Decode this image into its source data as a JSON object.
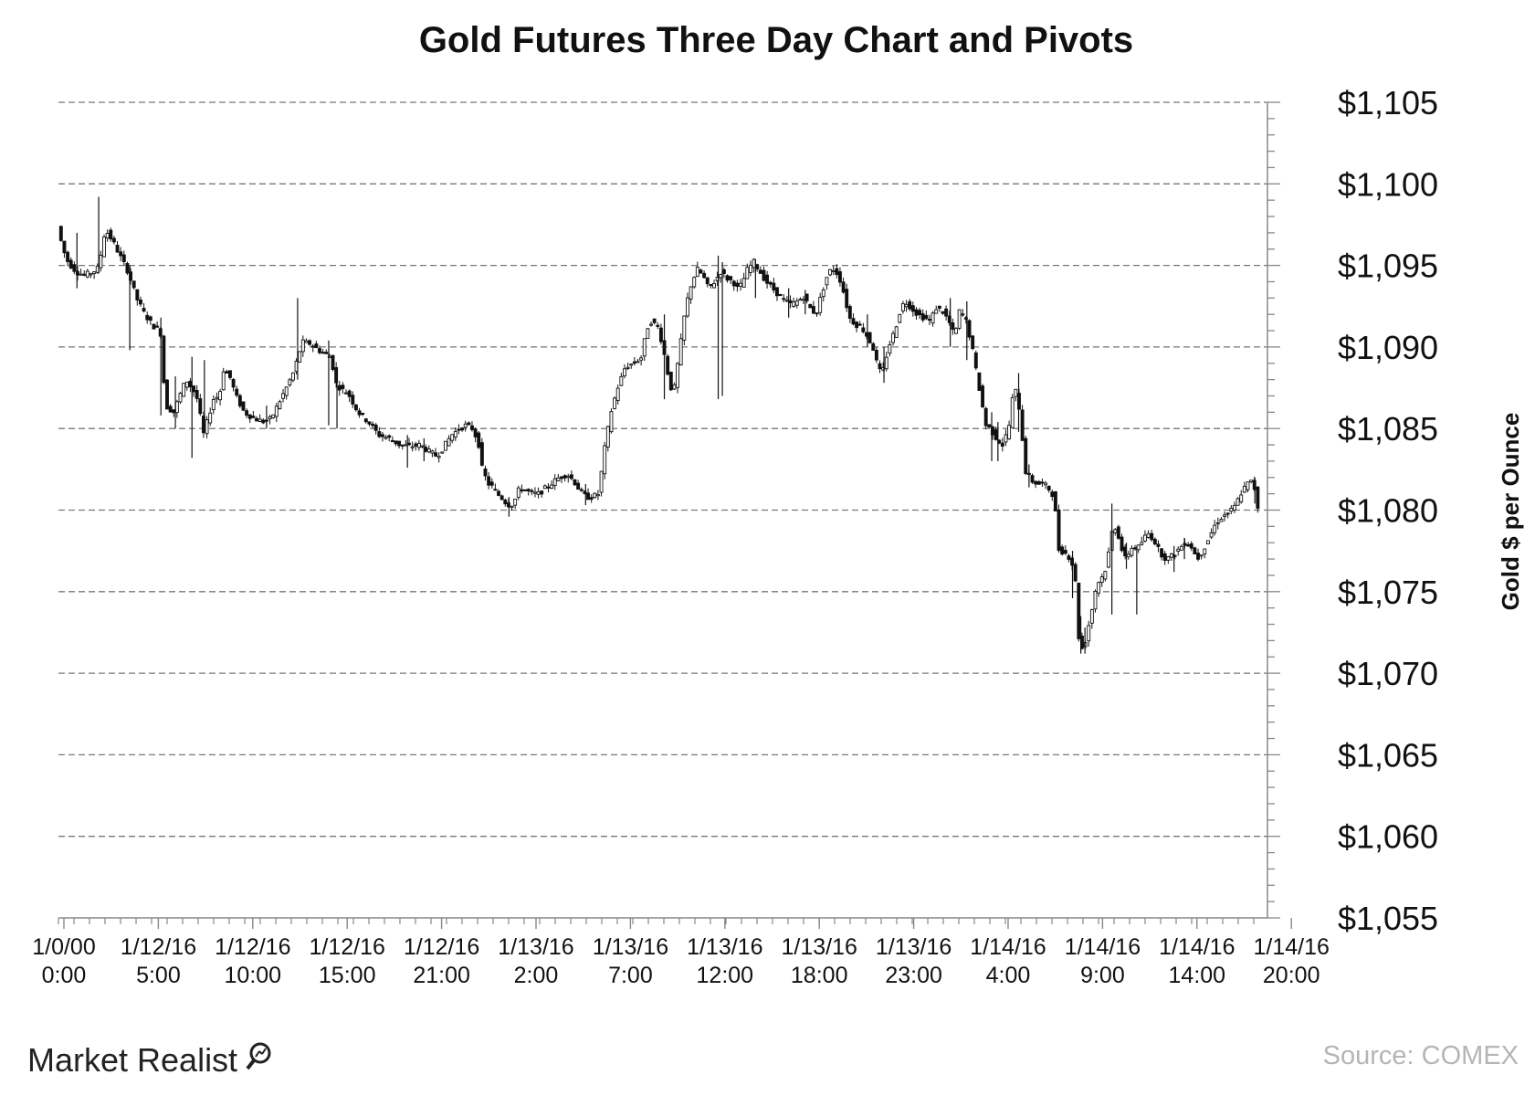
{
  "chart_data": {
    "type": "candlestick",
    "title": "Gold Futures Three Day Chart and Pivots",
    "ylabel": "Gold $ per  Ounce",
    "ylim": [
      1055,
      1105
    ],
    "yticks": [
      1105,
      1100,
      1095,
      1090,
      1085,
      1080,
      1075,
      1070,
      1065,
      1060,
      1055
    ],
    "ytick_labels": [
      "$1,105",
      "$1,100",
      "$1,095",
      "$1,090",
      "$1,085",
      "$1,080",
      "$1,075",
      "$1,070",
      "$1,065",
      "$1,060",
      "$1,055"
    ],
    "grid": "horizontal dashed",
    "xtick_labels": [
      [
        "1/0/00",
        "0:00"
      ],
      [
        "1/12/16",
        "5:00"
      ],
      [
        "1/12/16",
        "10:00"
      ],
      [
        "1/12/16",
        "15:00"
      ],
      [
        "1/12/16",
        "21:00"
      ],
      [
        "1/13/16",
        "2:00"
      ],
      [
        "1/13/16",
        "7:00"
      ],
      [
        "1/13/16",
        "12:00"
      ],
      [
        "1/13/16",
        "18:00"
      ],
      [
        "1/13/16",
        "23:00"
      ],
      [
        "1/14/16",
        "4:00"
      ],
      [
        "1/14/16",
        "9:00"
      ],
      [
        "1/14/16",
        "14:00"
      ],
      [
        "1/14/16",
        "20:00"
      ]
    ],
    "price_path": [
      [
        0,
        1097.4
      ],
      [
        5,
        1096.0
      ],
      [
        10,
        1095.2
      ],
      [
        18,
        1094.6
      ],
      [
        26,
        1094.4
      ],
      [
        34,
        1094.6
      ],
      [
        40,
        1094.9
      ],
      [
        44,
        1096.8
      ],
      [
        48,
        1097.0
      ],
      [
        53,
        1096.5
      ],
      [
        60,
        1095.6
      ],
      [
        68,
        1094.6
      ],
      [
        76,
        1093.0
      ],
      [
        84,
        1092.0
      ],
      [
        92,
        1091.3
      ],
      [
        99,
        1091.0
      ],
      [
        104,
        1086.4
      ],
      [
        112,
        1086.0
      ],
      [
        120,
        1087.4
      ],
      [
        124,
        1088.0
      ],
      [
        128,
        1087.6
      ],
      [
        132,
        1087.2
      ],
      [
        136,
        1086.6
      ],
      [
        140,
        1084.5
      ],
      [
        146,
        1085.8
      ],
      [
        150,
        1086.8
      ],
      [
        156,
        1087.0
      ],
      [
        160,
        1088.6
      ],
      [
        166,
        1088.2
      ],
      [
        172,
        1087.0
      ],
      [
        180,
        1086.0
      ],
      [
        190,
        1085.6
      ],
      [
        200,
        1085.4
      ],
      [
        206,
        1085.6
      ],
      [
        212,
        1086.4
      ],
      [
        220,
        1087.4
      ],
      [
        228,
        1088.5
      ],
      [
        236,
        1090.3
      ],
      [
        244,
        1090.2
      ],
      [
        252,
        1089.8
      ],
      [
        260,
        1089.5
      ],
      [
        264,
        1089.4
      ],
      [
        268,
        1087.8
      ],
      [
        274,
        1087.4
      ],
      [
        280,
        1087.2
      ],
      [
        290,
        1086.0
      ],
      [
        300,
        1085.4
      ],
      [
        310,
        1084.6
      ],
      [
        320,
        1084.4
      ],
      [
        330,
        1084.0
      ],
      [
        340,
        1083.9
      ],
      [
        350,
        1084.0
      ],
      [
        358,
        1083.6
      ],
      [
        366,
        1083.3
      ],
      [
        372,
        1083.8
      ],
      [
        380,
        1084.6
      ],
      [
        388,
        1085.0
      ],
      [
        394,
        1085.2
      ],
      [
        400,
        1085.0
      ],
      [
        406,
        1084.2
      ],
      [
        410,
        1082.4
      ],
      [
        416,
        1081.6
      ],
      [
        420,
        1081.4
      ],
      [
        424,
        1081.0
      ],
      [
        428,
        1080.8
      ],
      [
        432,
        1080.5
      ],
      [
        436,
        1080.3
      ],
      [
        440,
        1080.4
      ],
      [
        446,
        1081.4
      ],
      [
        452,
        1081.2
      ],
      [
        458,
        1081.0
      ],
      [
        464,
        1081.0
      ],
      [
        470,
        1081.3
      ],
      [
        476,
        1081.6
      ],
      [
        484,
        1082.0
      ],
      [
        492,
        1082.2
      ],
      [
        498,
        1081.8
      ],
      [
        504,
        1081.2
      ],
      [
        510,
        1080.8
      ],
      [
        516,
        1080.8
      ],
      [
        522,
        1081.0
      ],
      [
        528,
        1083.8
      ],
      [
        534,
        1086.0
      ],
      [
        540,
        1087.4
      ],
      [
        548,
        1088.8
      ],
      [
        556,
        1089.0
      ],
      [
        564,
        1089.4
      ],
      [
        568,
        1091.0
      ],
      [
        572,
        1091.6
      ],
      [
        580,
        1091.2
      ],
      [
        586,
        1089.4
      ],
      [
        590,
        1088.0
      ],
      [
        594,
        1087.0
      ],
      [
        600,
        1089.6
      ],
      [
        606,
        1092.4
      ],
      [
        612,
        1094.0
      ],
      [
        618,
        1094.8
      ],
      [
        624,
        1094.2
      ],
      [
        628,
        1093.6
      ],
      [
        634,
        1094.0
      ],
      [
        640,
        1094.6
      ],
      [
        646,
        1094.2
      ],
      [
        652,
        1094.0
      ],
      [
        656,
        1093.6
      ],
      [
        660,
        1093.8
      ],
      [
        666,
        1094.8
      ],
      [
        672,
        1095.2
      ],
      [
        678,
        1094.6
      ],
      [
        684,
        1094.0
      ],
      [
        690,
        1093.6
      ],
      [
        696,
        1093.2
      ],
      [
        702,
        1092.8
      ],
      [
        708,
        1092.6
      ],
      [
        714,
        1092.8
      ],
      [
        720,
        1093.1
      ],
      [
        726,
        1092.4
      ],
      [
        732,
        1092.0
      ],
      [
        738,
        1093.4
      ],
      [
        744,
        1094.6
      ],
      [
        750,
        1094.8
      ],
      [
        756,
        1094.0
      ],
      [
        760,
        1093.0
      ],
      [
        764,
        1091.8
      ],
      [
        770,
        1091.4
      ],
      [
        776,
        1091.2
      ],
      [
        782,
        1090.6
      ],
      [
        788,
        1089.8
      ],
      [
        792,
        1088.6
      ],
      [
        796,
        1088.4
      ],
      [
        802,
        1090.0
      ],
      [
        808,
        1091.0
      ],
      [
        814,
        1092.4
      ],
      [
        818,
        1092.8
      ],
      [
        824,
        1092.4
      ],
      [
        830,
        1092.0
      ],
      [
        836,
        1091.8
      ],
      [
        842,
        1091.6
      ],
      [
        848,
        1092.4
      ],
      [
        854,
        1092.2
      ],
      [
        860,
        1091.6
      ],
      [
        866,
        1090.6
      ],
      [
        870,
        1092.2
      ],
      [
        876,
        1091.8
      ],
      [
        882,
        1090.2
      ],
      [
        888,
        1088.0
      ],
      [
        892,
        1086.6
      ],
      [
        896,
        1085.2
      ],
      [
        900,
        1085.0
      ],
      [
        906,
        1084.4
      ],
      [
        912,
        1084.0
      ],
      [
        918,
        1085.0
      ],
      [
        922,
        1087.0
      ],
      [
        926,
        1087.4
      ],
      [
        930,
        1085.2
      ],
      [
        934,
        1082.4
      ],
      [
        940,
        1081.8
      ],
      [
        946,
        1081.6
      ],
      [
        952,
        1081.6
      ],
      [
        958,
        1081.2
      ],
      [
        962,
        1080.8
      ],
      [
        966,
        1077.6
      ],
      [
        972,
        1077.4
      ],
      [
        978,
        1077.0
      ],
      [
        982,
        1076.0
      ],
      [
        986,
        1071.8
      ],
      [
        990,
        1071.4
      ],
      [
        994,
        1072.6
      ],
      [
        998,
        1073.8
      ],
      [
        1002,
        1075.2
      ],
      [
        1006,
        1075.8
      ],
      [
        1010,
        1076.0
      ],
      [
        1014,
        1077.2
      ],
      [
        1018,
        1078.8
      ],
      [
        1022,
        1079.0
      ],
      [
        1026,
        1077.8
      ],
      [
        1030,
        1077.0
      ],
      [
        1034,
        1077.4
      ],
      [
        1038,
        1077.8
      ],
      [
        1042,
        1077.6
      ],
      [
        1046,
        1078.0
      ],
      [
        1052,
        1078.6
      ],
      [
        1058,
        1078.2
      ],
      [
        1064,
        1077.4
      ],
      [
        1070,
        1077.0
      ],
      [
        1076,
        1077.2
      ],
      [
        1082,
        1077.6
      ],
      [
        1088,
        1078.0
      ],
      [
        1094,
        1077.8
      ],
      [
        1100,
        1077.0
      ],
      [
        1106,
        1077.6
      ],
      [
        1112,
        1078.4
      ],
      [
        1118,
        1079.2
      ],
      [
        1124,
        1079.6
      ],
      [
        1130,
        1079.8
      ],
      [
        1136,
        1080.2
      ],
      [
        1142,
        1081.0
      ],
      [
        1148,
        1081.6
      ],
      [
        1154,
        1081.8
      ],
      [
        1158,
        1080.2
      ]
    ],
    "wicks": [
      [
        17,
        1093.6,
        1097.0
      ],
      [
        38,
        1094.5,
        1099.2
      ],
      [
        68,
        1089.8,
        1095.0
      ],
      [
        98,
        1085.8,
        1091.8
      ],
      [
        112,
        1085.0,
        1088.2
      ],
      [
        128,
        1083.2,
        1089.4
      ],
      [
        140,
        1085.4,
        1089.2
      ],
      [
        200,
        1085.0,
        1086.4
      ],
      [
        230,
        1088.0,
        1093.0
      ],
      [
        260,
        1085.2,
        1090.4
      ],
      [
        268,
        1085.0,
        1087.8
      ],
      [
        336,
        1082.6,
        1084.6
      ],
      [
        352,
        1083.0,
        1084.4
      ],
      [
        434,
        1079.6,
        1080.8
      ],
      [
        508,
        1080.3,
        1081.6
      ],
      [
        584,
        1086.8,
        1092.0
      ],
      [
        636,
        1086.8,
        1095.6
      ],
      [
        640,
        1087.0,
        1095.2
      ],
      [
        672,
        1093.0,
        1095.4
      ],
      [
        704,
        1091.8,
        1093.6
      ],
      [
        720,
        1092.0,
        1093.5
      ],
      [
        780,
        1090.0,
        1092.0
      ],
      [
        796,
        1087.8,
        1090.0
      ],
      [
        860,
        1090.0,
        1093.0
      ],
      [
        876,
        1089.2,
        1092.8
      ],
      [
        900,
        1083.0,
        1086.0
      ],
      [
        906,
        1083.0,
        1085.4
      ],
      [
        926,
        1084.8,
        1088.4
      ],
      [
        936,
        1081.4,
        1082.8
      ],
      [
        978,
        1074.6,
        1077.5
      ],
      [
        986,
        1071.2,
        1073.5
      ],
      [
        990,
        1071.2,
        1072.8
      ],
      [
        1016,
        1073.6,
        1080.4
      ],
      [
        1030,
        1076.4,
        1078.0
      ],
      [
        1040,
        1073.6,
        1077.8
      ],
      [
        1076,
        1076.2,
        1077.8
      ],
      [
        1086,
        1077.0,
        1078.3
      ],
      [
        1154,
        1080.4,
        1082.0
      ]
    ]
  },
  "footer": {
    "brand": "Market Realist",
    "source": "Source: COMEX"
  }
}
